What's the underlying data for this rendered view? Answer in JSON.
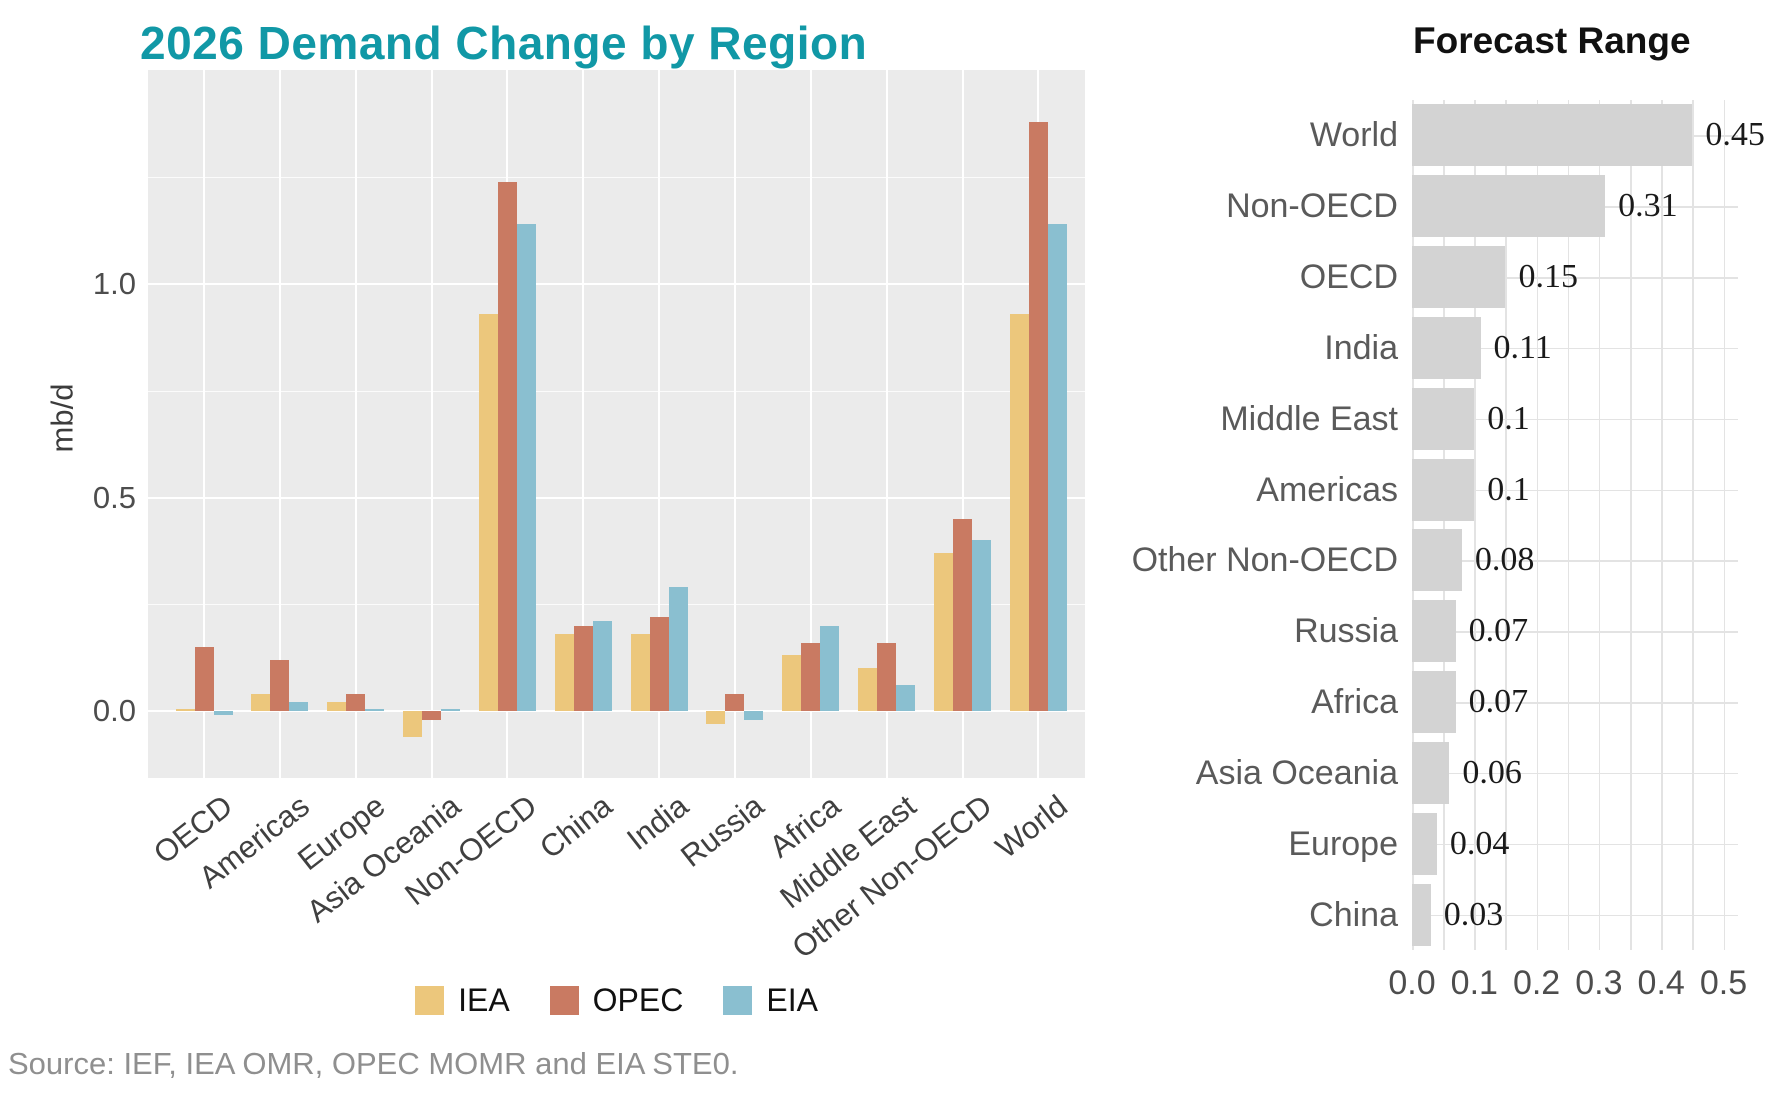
{
  "source": "Source: IEF, IEA OMR, OPEC MOMR and EIA STE0.",
  "chart_data": [
    {
      "type": "bar",
      "title": "2026 Demand Change by Region",
      "xlabel": "",
      "ylabel": "mb/d",
      "categories": [
        "OECD",
        "Americas",
        "Europe",
        "Asia Oceania",
        "Non-OECD",
        "China",
        "India",
        "Russia",
        "Africa",
        "Middle East",
        "Other Non-OECD",
        "World"
      ],
      "series": [
        {
          "name": "IEA",
          "color": "#ECC77C",
          "values": [
            0.0,
            0.04,
            0.02,
            -0.06,
            0.93,
            0.18,
            0.18,
            -0.03,
            0.13,
            0.1,
            0.37,
            0.93
          ]
        },
        {
          "name": "OPEC",
          "color": "#C97A62",
          "values": [
            0.15,
            0.12,
            0.04,
            -0.02,
            1.24,
            0.2,
            0.22,
            0.04,
            0.16,
            0.16,
            0.45,
            1.38
          ]
        },
        {
          "name": "EIA",
          "color": "#8ABFD0",
          "values": [
            -0.01,
            0.02,
            0.0,
            0.0,
            1.14,
            0.21,
            0.29,
            -0.02,
            0.2,
            0.06,
            0.4,
            1.14
          ]
        }
      ],
      "ylim": [
        -0.16,
        1.5
      ],
      "yticks": [
        0.0,
        0.5,
        1.0
      ],
      "ytick_labels": [
        "0.0",
        "0.5",
        "1.0"
      ],
      "grid": "on",
      "panel_background": "#EBEBEB",
      "legend_position": "bottom"
    },
    {
      "type": "bar",
      "orientation": "horizontal",
      "title": "Forecast Range",
      "categories": [
        "World",
        "Non-OECD",
        "OECD",
        "India",
        "Middle East",
        "Americas",
        "Other Non-OECD",
        "Russia",
        "Africa",
        "Asia Oceania",
        "Europe",
        "China"
      ],
      "values": [
        0.45,
        0.31,
        0.15,
        0.11,
        0.1,
        0.1,
        0.08,
        0.07,
        0.07,
        0.06,
        0.04,
        0.03
      ],
      "value_labels": [
        "0.45",
        "0.31",
        "0.15",
        "0.11",
        "0.1",
        "0.1",
        "0.08",
        "0.07",
        "0.07",
        "0.06",
        "0.04",
        "0.03"
      ],
      "xlim": [
        0,
        0.52
      ],
      "xticks": [
        0.0,
        0.1,
        0.2,
        0.3,
        0.4,
        0.5
      ],
      "xtick_labels": [
        "0.0",
        "0.1",
        "0.2",
        "0.3",
        "0.4",
        "0.5"
      ],
      "bar_color": "#D3D3D3",
      "grid": "on"
    }
  ]
}
